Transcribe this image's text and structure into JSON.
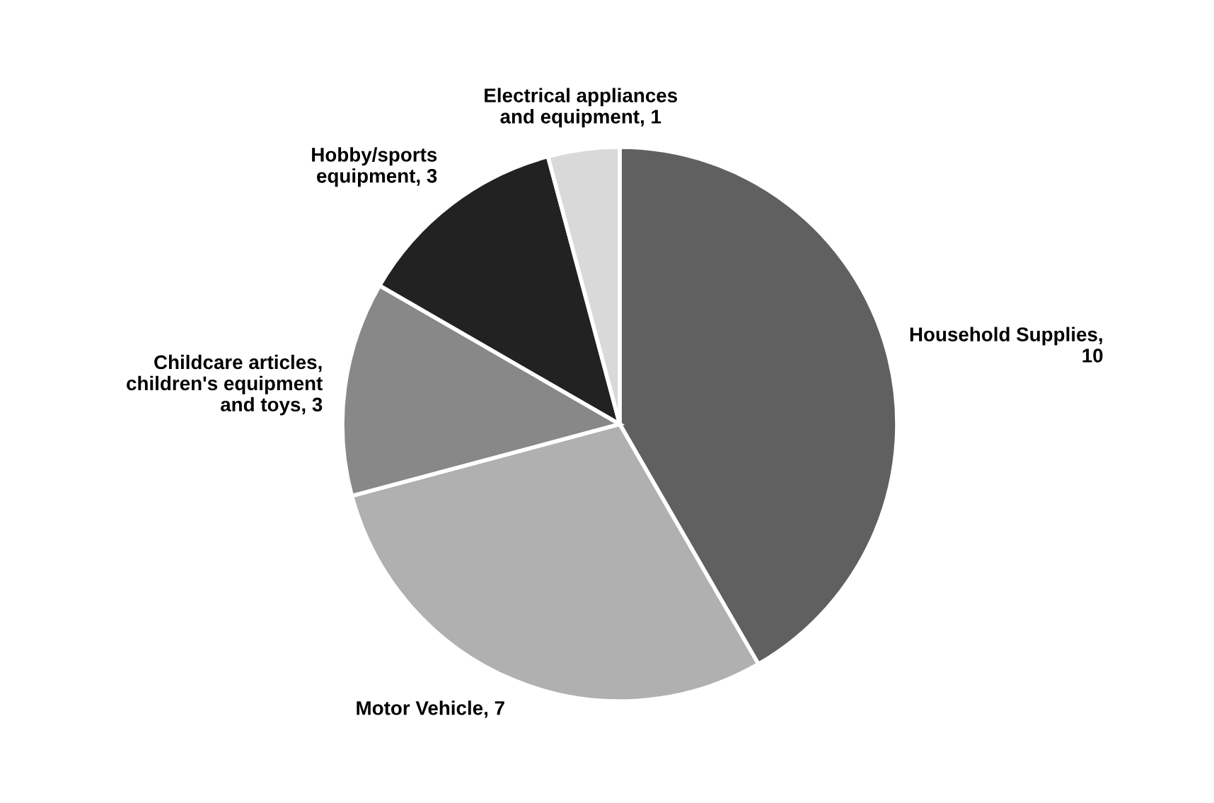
{
  "chart_data": {
    "type": "pie",
    "categories": [
      "Household Supplies,\n10",
      "Motor Vehicle, 7",
      "Childcare articles,\nchildren's equipment\nand toys, 3",
      "Hobby/sports\nequipment, 3",
      "Electrical appliances\nand equipment, 1"
    ],
    "values": [
      10,
      7,
      3,
      3,
      1
    ],
    "colors": [
      "#606060",
      "#b0b0b0",
      "#888888",
      "#222222",
      "#d9d9d9"
    ]
  }
}
